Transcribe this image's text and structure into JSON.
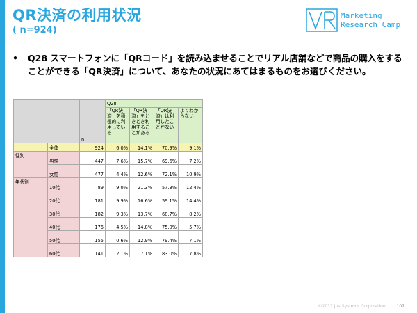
{
  "header": {
    "title": "QR決済の利用状況",
    "subtitle": "( n=924)"
  },
  "logo": {
    "mark": "VR",
    "line1": "Marketing",
    "line2": "Research Camp",
    "color": "#2aa6de"
  },
  "question": {
    "bullet": "•",
    "text": "Q28 スマートフォンに「QRコード」を読み込ませることでリアル店舗などで商品の購入をすることができる「QR決済」について、あなたの状況にあてはまるものをお選びください。"
  },
  "table": {
    "n_header": "n",
    "q_header": "Q28",
    "options": [
      "「QR決済」を積極的に利用している",
      "「QR決済」をときどき利用することがある",
      "「QR決済」は利用したことがない",
      "よくわからない"
    ],
    "total": {
      "label": "全体",
      "n": "924",
      "values": [
        "6.0%",
        "14.1%",
        "70.9%",
        "9.1%"
      ]
    },
    "groups": [
      {
        "label": "性別",
        "rows": [
          {
            "label": "男性",
            "n": "447",
            "values": [
              "7.6%",
              "15.7%",
              "69.6%",
              "7.2%"
            ]
          },
          {
            "label": "女性",
            "n": "477",
            "values": [
              "4.4%",
              "12.6%",
              "72.1%",
              "10.9%"
            ]
          }
        ]
      },
      {
        "label": "年代別",
        "rows": [
          {
            "label": "10代",
            "n": "89",
            "values": [
              "9.0%",
              "21.3%",
              "57.3%",
              "12.4%"
            ]
          },
          {
            "label": "20代",
            "n": "181",
            "values": [
              "9.9%",
              "16.6%",
              "59.1%",
              "14.4%"
            ]
          },
          {
            "label": "30代",
            "n": "182",
            "values": [
              "9.3%",
              "13.7%",
              "68.7%",
              "8.2%"
            ]
          },
          {
            "label": "40代",
            "n": "176",
            "values": [
              "4.5%",
              "14.8%",
              "75.0%",
              "5.7%"
            ]
          },
          {
            "label": "50代",
            "n": "155",
            "values": [
              "0.6%",
              "12.9%",
              "79.4%",
              "7.1%"
            ]
          },
          {
            "label": "60代",
            "n": "141",
            "values": [
              "2.1%",
              "7.1%",
              "83.0%",
              "7.8%"
            ]
          }
        ]
      }
    ]
  },
  "footer": {
    "copyright": "©2017 JustSystems Corporation",
    "page": "107"
  },
  "colors": {
    "accent": "#2aa6de",
    "header_gray": "#d9d9d9",
    "option_green": "#d9f0c8",
    "total_yellow": "#f7f3b0",
    "segment_pink": "#f3d4d6"
  }
}
